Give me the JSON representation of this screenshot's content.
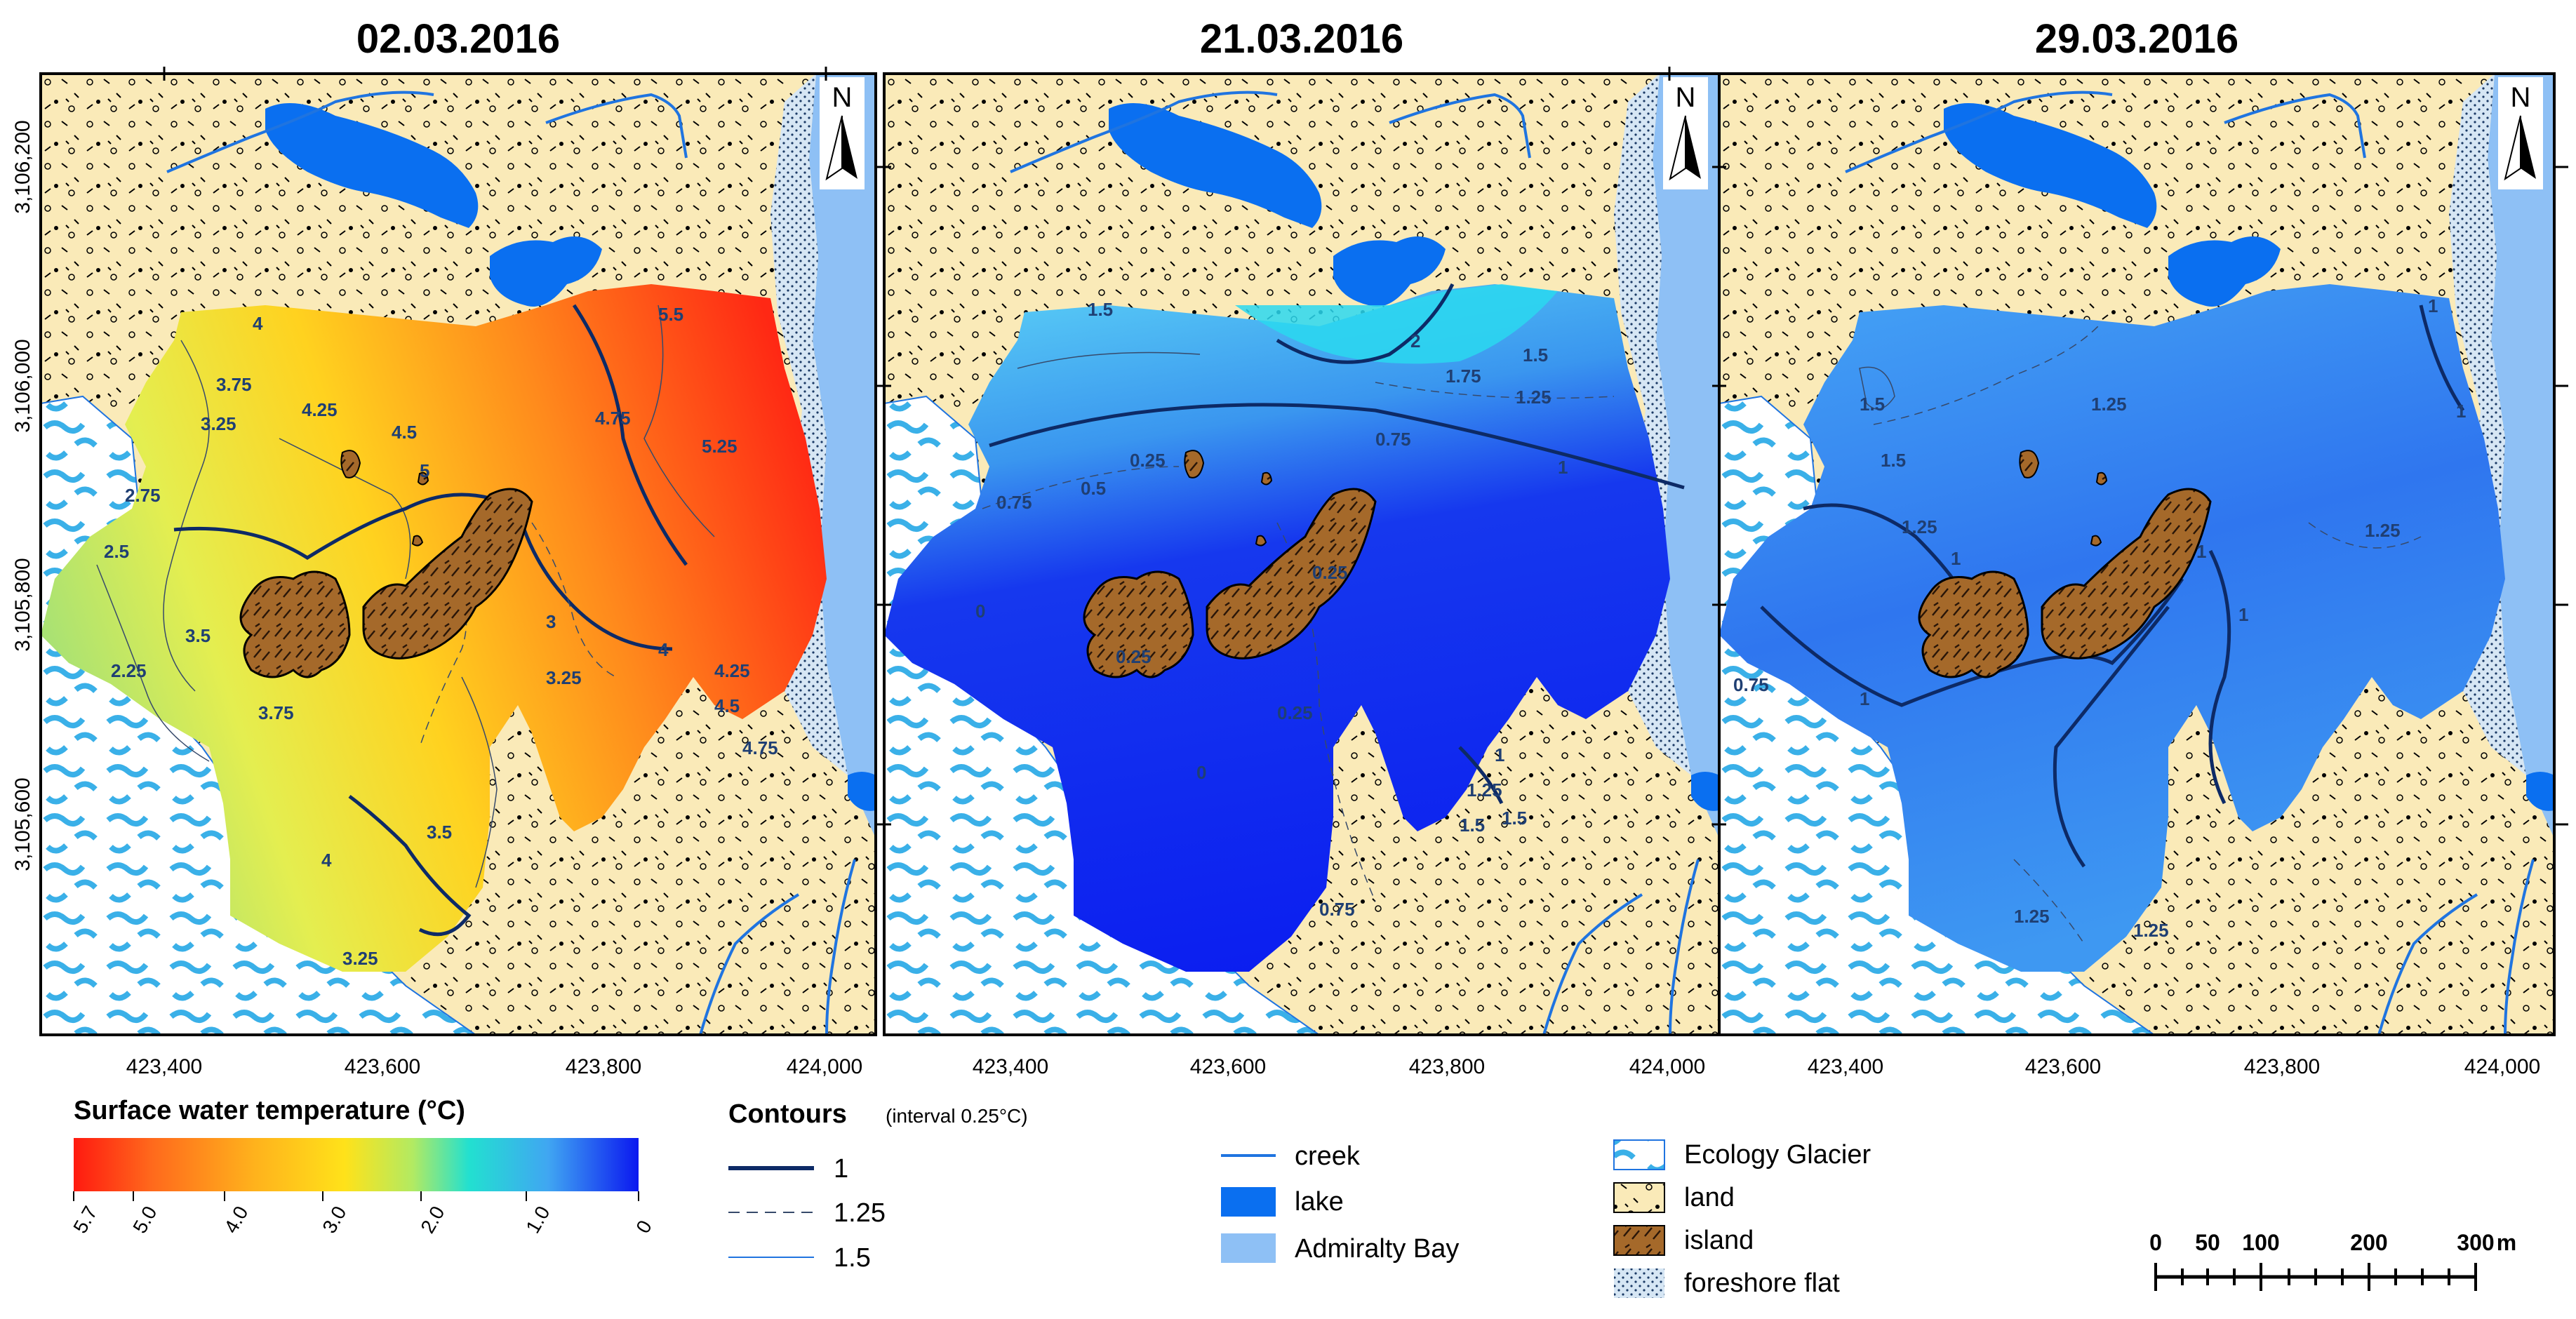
{
  "panels": [
    {
      "date": "02.03.2016",
      "theme": "warm"
    },
    {
      "date": "21.03.2016",
      "theme": "cold"
    },
    {
      "date": "29.03.2016",
      "theme": "mid"
    }
  ],
  "north_label": "N",
  "x_ticks": [
    "423,400",
    "423,600",
    "423,800",
    "424,000"
  ],
  "y_ticks": [
    "3,106,200",
    "3,106,000",
    "3,105,800",
    "3,105,600"
  ],
  "contour_labels": {
    "panel1": [
      "4",
      "3.75",
      "4.25",
      "3.25",
      "4.5",
      "5",
      "5.5",
      "5.25",
      "4.75",
      "2.75",
      "2.5",
      "2.25",
      "3.5",
      "3",
      "4.25",
      "4.5",
      "3.75",
      "3.25",
      "4",
      "4.75",
      "3.5",
      "3.25",
      "4"
    ],
    "panel2": [
      "1.5",
      "2",
      "1.75",
      "1.5",
      "1.25",
      "0.75",
      "0.5",
      "0.25",
      "0.75",
      "1",
      "0",
      "0.25",
      "0.25",
      "0.25",
      "0",
      "0.75",
      "1",
      "1.25",
      "1.5",
      "1.5"
    ],
    "panel3": [
      "1",
      "1.5",
      "1.25",
      "1.5",
      "1.25",
      "1",
      "1.25",
      "1",
      "1",
      "1",
      "1",
      "0.75",
      "1.25",
      "1.25"
    ]
  },
  "temperature_legend": {
    "title": "Surface water temperature (°C)",
    "ticks": [
      "5.7",
      "5.0",
      "4.0",
      "3.0",
      "2.0",
      "1.0",
      "0"
    ],
    "colors": [
      "#ff1a10",
      "#ff8a1c",
      "#ffe21a",
      "#a8e86a",
      "#22e0d0",
      "#40a6f2",
      "#0b18f0"
    ]
  },
  "contours_legend": {
    "title": "Contours",
    "subtitle": "(interval 0.25°C)",
    "items": [
      "1",
      "1.25",
      "1.5"
    ]
  },
  "features_legend": {
    "items": [
      "creek",
      "lake",
      "Admiralty Bay"
    ],
    "colors": {
      "creek": "#1f74e0",
      "lake": "#0a6ff0",
      "bay": "#8ec0f5"
    }
  },
  "landcover_legend": {
    "items": [
      "Ecology Glacier",
      "land",
      "island",
      "foreshore flat"
    ],
    "colors": {
      "glacier": "#3ab0e8",
      "land": "#faeab8",
      "island": "#a5692a"
    }
  },
  "scale_bar": {
    "labels": [
      "0",
      "50",
      "100",
      "200",
      "300"
    ],
    "unit": "m"
  }
}
